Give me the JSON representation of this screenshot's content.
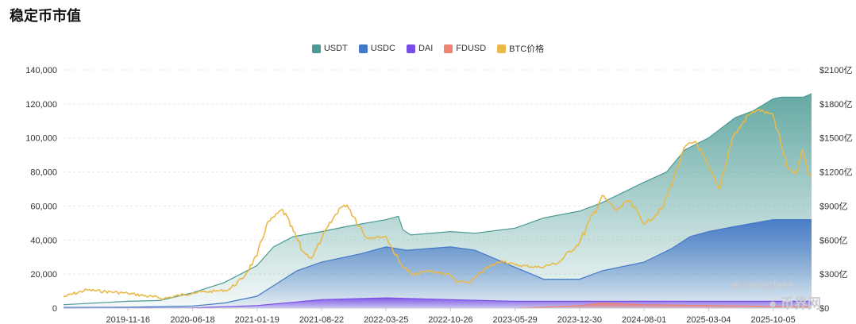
{
  "page": {
    "title": "稳定币市值"
  },
  "colors": {
    "usdt": "#4a9a93",
    "usdc": "#4478c8",
    "dai": "#7b4de8",
    "fdusd": "#ee8371",
    "btc": "#e9b949"
  },
  "watermark": {
    "brand": "coinglass",
    "brand_cn": "币界网"
  },
  "chart_data": {
    "type": "area",
    "title": "稳定币市值",
    "legend_position": "top-center",
    "grid": true,
    "x_ticks": [
      "2019-11-16",
      "2020-06-18",
      "2021-01-19",
      "2021-08-22",
      "2022-03-25",
      "2022-10-26",
      "2023-05-29",
      "2023-12-30",
      "2024-08-01",
      "2025-03-04",
      "2025-10-05"
    ],
    "y_left": {
      "ticks": [
        "0",
        "20,000",
        "40,000",
        "60,000",
        "80,000",
        "100,000",
        "120,000",
        "140,000"
      ],
      "range": [
        0,
        140000
      ]
    },
    "y_right": {
      "ticks": [
        "$0",
        "$300亿",
        "$600亿",
        "$900亿",
        "$1200亿",
        "$1500亿",
        "$1800亿",
        "$2100亿"
      ],
      "range": [
        0,
        2100
      ]
    },
    "x_range": [
      "2019-04-15",
      "2026-02-10"
    ],
    "series": [
      {
        "name": "USDT",
        "axis": "left",
        "points": [
          [
            "2019-04-15",
            2000
          ],
          [
            "2019-11-16",
            4000
          ],
          [
            "2020-03-01",
            4500
          ],
          [
            "2020-06-18",
            9000
          ],
          [
            "2020-10-01",
            15000
          ],
          [
            "2021-01-19",
            25000
          ],
          [
            "2021-03-15",
            36000
          ],
          [
            "2021-05-20",
            42000
          ],
          [
            "2021-08-22",
            45000
          ],
          [
            "2021-11-15",
            48000
          ],
          [
            "2022-03-25",
            52000
          ],
          [
            "2022-05-05",
            54000
          ],
          [
            "2022-05-20",
            46000
          ],
          [
            "2022-06-15",
            43000
          ],
          [
            "2022-10-26",
            45000
          ],
          [
            "2023-01-15",
            44000
          ],
          [
            "2023-05-29",
            47000
          ],
          [
            "2023-09-01",
            53000
          ],
          [
            "2023-12-30",
            57000
          ],
          [
            "2024-03-15",
            62000
          ],
          [
            "2024-08-01",
            74000
          ],
          [
            "2024-10-15",
            80000
          ],
          [
            "2024-12-15",
            93000
          ],
          [
            "2025-03-04",
            100000
          ],
          [
            "2025-06-01",
            112000
          ],
          [
            "2025-08-01",
            116000
          ],
          [
            "2025-10-05",
            123000
          ],
          [
            "2025-11-01",
            124000
          ],
          [
            "2026-01-15",
            124000
          ],
          [
            "2026-02-10",
            126000
          ]
        ]
      },
      {
        "name": "USDC",
        "axis": "left",
        "points": [
          [
            "2019-04-15",
            400
          ],
          [
            "2019-11-16",
            500
          ],
          [
            "2020-06-18",
            1200
          ],
          [
            "2020-10-01",
            3000
          ],
          [
            "2021-01-19",
            7000
          ],
          [
            "2021-06-01",
            22000
          ],
          [
            "2021-08-22",
            27000
          ],
          [
            "2022-01-01",
            32000
          ],
          [
            "2022-03-25",
            36000
          ],
          [
            "2022-06-01",
            34000
          ],
          [
            "2022-10-26",
            36000
          ],
          [
            "2023-01-15",
            34000
          ],
          [
            "2023-03-10",
            30000
          ],
          [
            "2023-05-29",
            24000
          ],
          [
            "2023-09-01",
            17000
          ],
          [
            "2023-12-30",
            17000
          ],
          [
            "2024-03-15",
            22000
          ],
          [
            "2024-08-01",
            27000
          ],
          [
            "2024-11-01",
            35000
          ],
          [
            "2025-01-01",
            42000
          ],
          [
            "2025-03-04",
            45000
          ],
          [
            "2025-06-01",
            48000
          ],
          [
            "2025-10-05",
            52000
          ],
          [
            "2026-02-10",
            52000
          ]
        ]
      },
      {
        "name": "DAI",
        "axis": "left",
        "points": [
          [
            "2019-04-15",
            0
          ],
          [
            "2020-06-18",
            200
          ],
          [
            "2021-01-19",
            1500
          ],
          [
            "2021-08-22",
            5000
          ],
          [
            "2022-03-25",
            6000
          ],
          [
            "2022-10-26",
            5000
          ],
          [
            "2023-05-29",
            4000
          ],
          [
            "2024-08-01",
            4000
          ],
          [
            "2025-03-04",
            4000
          ],
          [
            "2026-02-10",
            4000
          ]
        ]
      },
      {
        "name": "FDUSD",
        "axis": "left",
        "points": [
          [
            "2023-06-01",
            0
          ],
          [
            "2023-09-01",
            600
          ],
          [
            "2023-12-30",
            1500
          ],
          [
            "2024-03-15",
            3000
          ],
          [
            "2024-08-01",
            2000
          ],
          [
            "2025-03-04",
            1500
          ],
          [
            "2026-02-10",
            800
          ]
        ]
      },
      {
        "name": "BTC价格",
        "axis": "right",
        "points": [
          [
            "2019-04-15",
            100
          ],
          [
            "2019-07-01",
            160
          ],
          [
            "2019-11-16",
            130
          ],
          [
            "2020-03-15",
            85
          ],
          [
            "2020-06-18",
            135
          ],
          [
            "2020-09-01",
            150
          ],
          [
            "2020-10-15",
            160
          ],
          [
            "2020-12-01",
            260
          ],
          [
            "2021-01-19",
            460
          ],
          [
            "2021-02-20",
            740
          ],
          [
            "2021-04-14",
            870
          ],
          [
            "2021-06-20",
            500
          ],
          [
            "2021-07-20",
            440
          ],
          [
            "2021-08-22",
            610
          ],
          [
            "2021-10-20",
            880
          ],
          [
            "2021-11-15",
            910
          ],
          [
            "2022-01-20",
            620
          ],
          [
            "2022-03-25",
            630
          ],
          [
            "2022-05-10",
            400
          ],
          [
            "2022-06-20",
            290
          ],
          [
            "2022-08-15",
            330
          ],
          [
            "2022-10-26",
            290
          ],
          [
            "2022-11-15",
            230
          ],
          [
            "2023-01-01",
            230
          ],
          [
            "2023-02-15",
            340
          ],
          [
            "2023-04-15",
            420
          ],
          [
            "2023-05-29",
            380
          ],
          [
            "2023-08-20",
            360
          ],
          [
            "2023-10-20",
            400
          ],
          [
            "2023-12-30",
            580
          ],
          [
            "2024-03-14",
            990
          ],
          [
            "2024-05-01",
            860
          ],
          [
            "2024-06-10",
            950
          ],
          [
            "2024-08-05",
            740
          ],
          [
            "2024-10-01",
            880
          ],
          [
            "2024-11-12",
            1180
          ],
          [
            "2024-12-17",
            1430
          ],
          [
            "2025-01-20",
            1470
          ],
          [
            "2025-03-04",
            1240
          ],
          [
            "2025-04-08",
            1050
          ],
          [
            "2025-05-22",
            1500
          ],
          [
            "2025-07-14",
            1700
          ],
          [
            "2025-08-14",
            1750
          ],
          [
            "2025-10-05",
            1700
          ],
          [
            "2025-11-20",
            1250
          ],
          [
            "2025-12-20",
            1180
          ],
          [
            "2026-01-10",
            1400
          ],
          [
            "2026-02-01",
            1180
          ],
          [
            "2026-02-10",
            1170
          ]
        ]
      }
    ]
  }
}
